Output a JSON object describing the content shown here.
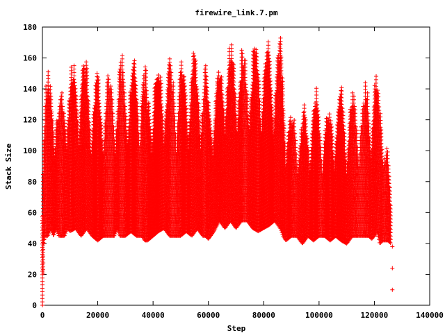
{
  "chart_data": {
    "type": "scatter",
    "title": "firewire_link.7.pm",
    "xlabel": "Step",
    "ylabel": "Stack Size",
    "xlim": [
      0,
      140000
    ],
    "ylim": [
      0,
      180
    ],
    "x_ticks": [
      0,
      20000,
      40000,
      60000,
      80000,
      100000,
      120000,
      140000
    ],
    "y_ticks": [
      0,
      20,
      40,
      60,
      80,
      100,
      120,
      140,
      160,
      180
    ],
    "grid": false,
    "legend": "none",
    "marker": "plus",
    "color": "#ff0000",
    "series": [
      {
        "envelope": {
          "x": [
            0,
            500,
            1000,
            2000,
            3000,
            4000,
            5000,
            6000,
            8000,
            9000,
            10000,
            12000,
            14000,
            16000,
            18000,
            20000,
            22000,
            24000,
            26000,
            27000,
            28000,
            30000,
            32000,
            34000,
            36000,
            37000,
            38000,
            40000,
            42000,
            44000,
            46000,
            48000,
            50000,
            52000,
            54000,
            56000,
            58000,
            59000,
            60000,
            62000,
            64000,
            66000,
            68000,
            70000,
            72000,
            74000,
            76000,
            78000,
            80000,
            82000,
            84000,
            86000,
            87000,
            88000,
            90000,
            92000,
            94000,
            96000,
            98000,
            100000,
            102000,
            104000,
            106000,
            108000,
            110000,
            112000,
            114000,
            116000,
            118000,
            119000,
            120000,
            121000,
            122000,
            123000,
            124000,
            125000,
            126000
          ],
          "high": [
            130,
            150,
            155,
            155,
            150,
            155,
            150,
            140,
            150,
            165,
            165,
            160,
            165,
            165,
            150,
            155,
            155,
            155,
            150,
            160,
            165,
            165,
            165,
            165,
            165,
            160,
            145,
            165,
            165,
            165,
            165,
            165,
            165,
            167,
            167,
            165,
            167,
            165,
            145,
            155,
            160,
            178,
            175,
            178,
            170,
            177,
            178,
            176,
            178,
            177,
            170,
            178,
            165,
            140,
            130,
            130,
            132,
            130,
            145,
            140,
            130,
            133,
            140,
            145,
            140,
            142,
            145,
            140,
            157,
            150,
            155,
            152,
            150,
            145,
            120,
            100,
            60
          ],
          "low": [
            0,
            40,
            45,
            45,
            50,
            45,
            50,
            45,
            45,
            50,
            48,
            50,
            45,
            50,
            45,
            42,
            45,
            45,
            45,
            50,
            45,
            45,
            48,
            45,
            45,
            42,
            42,
            45,
            48,
            50,
            45,
            45,
            45,
            48,
            45,
            50,
            45,
            45,
            43,
            48,
            55,
            50,
            55,
            50,
            55,
            55,
            50,
            48,
            50,
            52,
            55,
            50,
            45,
            42,
            45,
            45,
            40,
            45,
            42,
            45,
            45,
            42,
            45,
            42,
            40,
            45,
            45,
            45,
            45,
            43,
            45,
            48,
            40,
            42,
            42,
            42,
            40
          ]
        },
        "outliers": {
          "x": [
            126500,
            126500,
            126500
          ],
          "y": [
            24,
            10,
            38
          ]
        }
      }
    ]
  }
}
